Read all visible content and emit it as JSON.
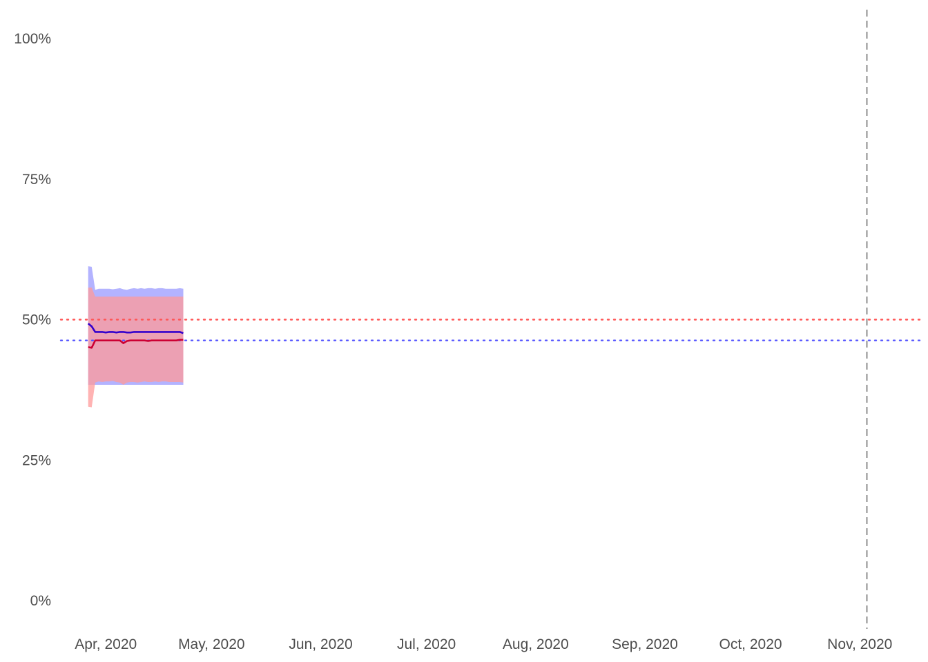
{
  "chart_data": {
    "type": "area",
    "title": "",
    "xlabel": "",
    "ylabel": "",
    "x_axis": {
      "type": "date",
      "range": [
        "2020-03-20",
        "2020-11-18"
      ],
      "ticks": [
        {
          "date": "2020-04-01",
          "label": "Apr, 2020"
        },
        {
          "date": "2020-05-01",
          "label": "May, 2020"
        },
        {
          "date": "2020-06-01",
          "label": "Jun, 2020"
        },
        {
          "date": "2020-07-01",
          "label": "Jul, 2020"
        },
        {
          "date": "2020-08-01",
          "label": "Aug, 2020"
        },
        {
          "date": "2020-09-01",
          "label": "Sep, 2020"
        },
        {
          "date": "2020-10-01",
          "label": "Oct, 2020"
        },
        {
          "date": "2020-11-01",
          "label": "Nov, 2020"
        }
      ]
    },
    "y_axis": {
      "range": [
        0,
        1
      ],
      "ticks": [
        {
          "value": 0,
          "label": "0%"
        },
        {
          "value": 0.25,
          "label": "25%"
        },
        {
          "value": 0.5,
          "label": "50%"
        },
        {
          "value": 0.75,
          "label": "75%"
        },
        {
          "value": 1,
          "label": "100%"
        }
      ]
    },
    "grid": false,
    "series": [
      {
        "color": "#3300cc",
        "band_color": "#9999ff",
        "x": [
          "2020-03-27",
          "2020-03-28",
          "2020-03-29",
          "2020-03-30",
          "2020-03-31",
          "2020-04-01",
          "2020-04-02",
          "2020-04-03",
          "2020-04-04",
          "2020-04-05",
          "2020-04-06",
          "2020-04-07",
          "2020-04-08",
          "2020-04-09",
          "2020-04-10",
          "2020-04-11",
          "2020-04-12",
          "2020-04-13",
          "2020-04-14",
          "2020-04-15",
          "2020-04-16",
          "2020-04-17",
          "2020-04-18",
          "2020-04-19",
          "2020-04-20",
          "2020-04-21",
          "2020-04-22",
          "2020-04-23"
        ],
        "values": [
          0.493,
          0.488,
          0.478,
          0.478,
          0.478,
          0.477,
          0.478,
          0.478,
          0.477,
          0.478,
          0.478,
          0.477,
          0.477,
          0.478,
          0.478,
          0.478,
          0.478,
          0.478,
          0.478,
          0.478,
          0.478,
          0.478,
          0.478,
          0.478,
          0.478,
          0.478,
          0.478,
          0.476
        ],
        "lower": [
          0.384,
          0.384,
          0.384,
          0.384,
          0.384,
          0.384,
          0.384,
          0.384,
          0.384,
          0.384,
          0.384,
          0.384,
          0.384,
          0.384,
          0.384,
          0.384,
          0.384,
          0.384,
          0.384,
          0.384,
          0.384,
          0.384,
          0.384,
          0.384,
          0.384,
          0.384,
          0.384,
          0.384
        ],
        "upper": [
          0.595,
          0.594,
          0.553,
          0.555,
          0.555,
          0.555,
          0.555,
          0.554,
          0.555,
          0.556,
          0.554,
          0.553,
          0.555,
          0.556,
          0.555,
          0.556,
          0.555,
          0.556,
          0.556,
          0.555,
          0.556,
          0.556,
          0.555,
          0.555,
          0.555,
          0.555,
          0.556,
          0.555
        ]
      },
      {
        "color": "#cc0033",
        "band_color": "#ff9999",
        "x": [
          "2020-03-27",
          "2020-03-28",
          "2020-03-29",
          "2020-03-30",
          "2020-03-31",
          "2020-04-01",
          "2020-04-02",
          "2020-04-03",
          "2020-04-04",
          "2020-04-05",
          "2020-04-06",
          "2020-04-07",
          "2020-04-08",
          "2020-04-09",
          "2020-04-10",
          "2020-04-11",
          "2020-04-12",
          "2020-04-13",
          "2020-04-14",
          "2020-04-15",
          "2020-04-16",
          "2020-04-17",
          "2020-04-18",
          "2020-04-19",
          "2020-04-20",
          "2020-04-21",
          "2020-04-22",
          "2020-04-23"
        ],
        "values": [
          0.451,
          0.45,
          0.463,
          0.463,
          0.463,
          0.463,
          0.463,
          0.463,
          0.463,
          0.463,
          0.458,
          0.462,
          0.463,
          0.463,
          0.463,
          0.463,
          0.463,
          0.462,
          0.463,
          0.463,
          0.463,
          0.463,
          0.463,
          0.463,
          0.463,
          0.463,
          0.464,
          0.464
        ],
        "lower": [
          0.345,
          0.344,
          0.388,
          0.39,
          0.389,
          0.39,
          0.39,
          0.391,
          0.389,
          0.388,
          0.384,
          0.388,
          0.389,
          0.389,
          0.388,
          0.389,
          0.39,
          0.389,
          0.389,
          0.39,
          0.389,
          0.39,
          0.39,
          0.389,
          0.389,
          0.389,
          0.389,
          0.388
        ],
        "upper": [
          0.557,
          0.557,
          0.541,
          0.541,
          0.541,
          0.541,
          0.541,
          0.541,
          0.541,
          0.541,
          0.541,
          0.541,
          0.541,
          0.541,
          0.541,
          0.541,
          0.541,
          0.541,
          0.541,
          0.541,
          0.541,
          0.541,
          0.541,
          0.541,
          0.541,
          0.541,
          0.541,
          0.541
        ]
      }
    ],
    "reference_lines": [
      {
        "orientation": "horizontal",
        "value": 0.5,
        "style": "dotted",
        "color": "#ff5555"
      },
      {
        "orientation": "horizontal",
        "value": 0.463,
        "style": "dotted",
        "color": "#5555ff"
      },
      {
        "orientation": "vertical",
        "value": "2020-11-03",
        "style": "dashed",
        "color": "#999999"
      }
    ]
  }
}
